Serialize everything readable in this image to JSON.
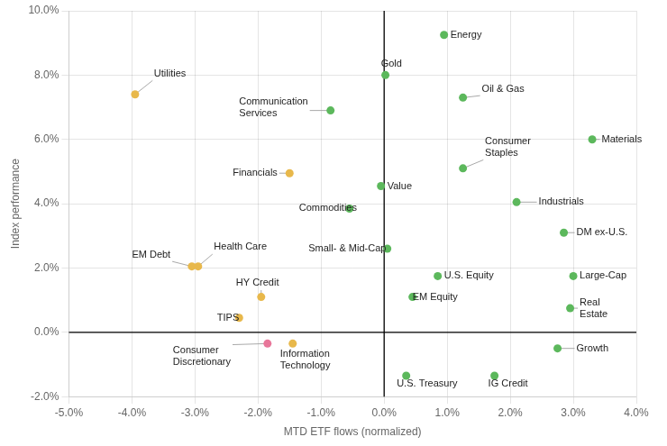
{
  "chart_data": {
    "type": "scatter",
    "xlabel": "MTD ETF flows (normalized)",
    "ylabel": "Index performance",
    "xlim": [
      -5.0,
      4.0
    ],
    "ylim": [
      -2.0,
      10.0
    ],
    "xticks": [
      {
        "value": -5.0,
        "label": "-5.0%"
      },
      {
        "value": -4.0,
        "label": "-4.0%"
      },
      {
        "value": -3.0,
        "label": "-3.0%"
      },
      {
        "value": -2.0,
        "label": "-2.0%"
      },
      {
        "value": -1.0,
        "label": "-1.0%"
      },
      {
        "value": 0.0,
        "label": "0.0%"
      },
      {
        "value": 1.0,
        "label": "1.0%"
      },
      {
        "value": 2.0,
        "label": "2.0%"
      },
      {
        "value": 3.0,
        "label": "3.0%"
      },
      {
        "value": 4.0,
        "label": "4.0%"
      }
    ],
    "yticks": [
      {
        "value": -2.0,
        "label": "-2.0%"
      },
      {
        "value": 0.0,
        "label": "0.0%"
      },
      {
        "value": 2.0,
        "label": "2.0%"
      },
      {
        "value": 4.0,
        "label": "4.0%"
      },
      {
        "value": 6.0,
        "label": "6.0%"
      },
      {
        "value": 8.0,
        "label": "8.0%"
      },
      {
        "value": 10.0,
        "label": "10.0%"
      }
    ],
    "grid": true,
    "x": [
      0.95,
      0.02,
      1.25,
      3.3,
      1.25,
      -0.85,
      -1.5,
      -0.05,
      -0.55,
      2.1,
      2.85,
      0.05,
      -3.05,
      -2.95,
      -1.95,
      3.0,
      0.85,
      -2.3,
      0.45,
      2.95,
      2.75,
      -1.85,
      -1.45,
      0.35,
      1.75,
      -3.95
    ],
    "values": [
      9.25,
      8.0,
      7.3,
      6.0,
      5.1,
      6.9,
      4.95,
      4.55,
      3.85,
      4.05,
      3.1,
      2.6,
      2.05,
      2.05,
      1.1,
      1.75,
      1.75,
      0.45,
      1.1,
      0.75,
      -0.5,
      -0.35,
      -0.35,
      -1.35,
      -1.35,
      7.4
    ],
    "colors": [
      "#5cb85c",
      "#5cb85c",
      "#5cb85c",
      "#5cb85c",
      "#5cb85c",
      "#5cb85c",
      "#e8b84b",
      "#5cb85c",
      "#5cb85c",
      "#5cb85c",
      "#5cb85c",
      "#5cb85c",
      "#e8b84b",
      "#e8b84b",
      "#e8b84b",
      "#5cb85c",
      "#5cb85c",
      "#e8b84b",
      "#5cb85c",
      "#5cb85c",
      "#5cb85c",
      "#e8779a",
      "#e8b84b",
      "#5cb85c",
      "#5cb85c",
      "#e8b84b"
    ],
    "annotations": [
      {
        "text": "Energy",
        "x": 1.05,
        "y": 9.25
      },
      {
        "text": "Gold",
        "x": -0.05,
        "y": 8.35
      },
      {
        "text": "Oil & Gas",
        "x": 1.55,
        "y": 7.55
      },
      {
        "text": "Materials",
        "x": 3.45,
        "y": 6.0
      },
      {
        "text": "Consumer\nStaples",
        "x": 1.6,
        "y": 5.75
      },
      {
        "text": "Communication\nServices",
        "x": -2.3,
        "y": 7.0
      },
      {
        "text": "Financials",
        "x": -2.4,
        "y": 4.95
      },
      {
        "text": "Value",
        "x": 0.05,
        "y": 4.55
      },
      {
        "text": "Commodities",
        "x": -1.35,
        "y": 3.85
      },
      {
        "text": "Industrials",
        "x": 2.45,
        "y": 4.05
      },
      {
        "text": "DM ex-U.S.",
        "x": 3.05,
        "y": 3.1
      },
      {
        "text": "Small- & Mid-Cap",
        "x": -1.2,
        "y": 2.6
      },
      {
        "text": "EM Debt",
        "x": -4.0,
        "y": 2.4
      },
      {
        "text": "Health Care",
        "x": -2.7,
        "y": 2.65
      },
      {
        "text": "HY Credit",
        "x": -2.35,
        "y": 1.55
      },
      {
        "text": "Large-Cap",
        "x": 3.1,
        "y": 1.75
      },
      {
        "text": "U.S. Equity",
        "x": 0.95,
        "y": 1.75
      },
      {
        "text": "TIPS",
        "x": -2.65,
        "y": 0.45
      },
      {
        "text": "EM Equity",
        "x": 0.45,
        "y": 1.1
      },
      {
        "text": "Real\nEstate",
        "x": 3.1,
        "y": 0.75
      },
      {
        "text": "Growth",
        "x": 3.05,
        "y": -0.5
      },
      {
        "text": "Consumer\nDiscretionary",
        "x": -3.35,
        "y": -0.75
      },
      {
        "text": "Information\nTechnology",
        "x": -1.65,
        "y": -0.85
      },
      {
        "text": "U.S. Treasury",
        "x": 0.2,
        "y": -1.6
      },
      {
        "text": "IG Credit",
        "x": 1.65,
        "y": -1.6
      },
      {
        "text": "Utilities",
        "x": -3.65,
        "y": 8.05
      }
    ]
  }
}
